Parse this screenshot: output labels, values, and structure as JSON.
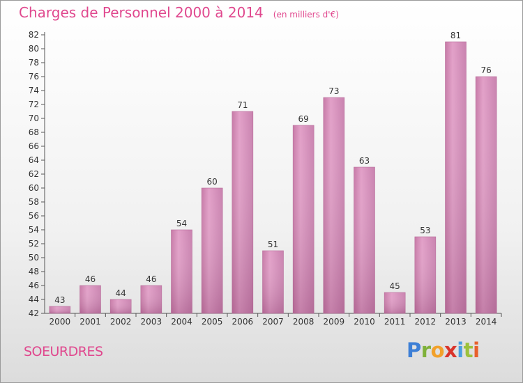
{
  "title": "Charges de Personnel 2000 à 2014",
  "subtitle": "(en milliers d'€)",
  "commune": "SOEURDRES",
  "logo": {
    "letters": [
      "P",
      "r",
      "o",
      "x",
      "i",
      "t",
      "i"
    ],
    "colors": [
      "#3d7fd6",
      "#7fb13a",
      "#f2a12b",
      "#d9342b",
      "#4a9fe0",
      "#9cc13c",
      "#e8602c"
    ]
  },
  "colors": {
    "bar": "#d57fb0",
    "bar_light": "#e8a6cd",
    "bar_dark": "#b8689a",
    "axis": "#555555",
    "grid": "#cccccc"
  },
  "chart_data": {
    "type": "bar",
    "categories": [
      "2000",
      "2001",
      "2002",
      "2003",
      "2004",
      "2005",
      "2006",
      "2007",
      "2008",
      "2009",
      "2010",
      "2011",
      "2012",
      "2013",
      "2014"
    ],
    "values": [
      43,
      46,
      44,
      46,
      54,
      60,
      71,
      51,
      69,
      73,
      63,
      45,
      53,
      81,
      76
    ],
    "ylim": [
      42,
      82
    ],
    "yticks": [
      42,
      44,
      46,
      48,
      50,
      52,
      54,
      56,
      58,
      60,
      62,
      64,
      66,
      68,
      70,
      72,
      74,
      76,
      78,
      80,
      82
    ],
    "title": "Charges de Personnel 2000 à 2014",
    "xlabel": "",
    "ylabel": "",
    "grid": false
  }
}
